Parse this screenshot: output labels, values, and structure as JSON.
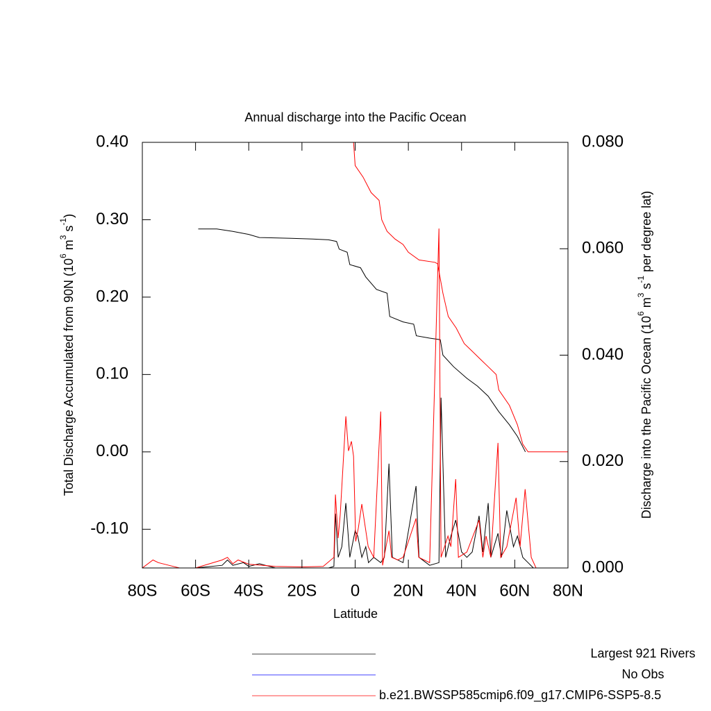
{
  "chart_data": {
    "type": "line",
    "title": "Annual discharge into the Pacific Ocean",
    "xlabel": "Latitude",
    "ylabel": [
      {
        "text": "Total Discharge Accumulated from 90N (10"
      },
      {
        "text": "6",
        "sup": true
      },
      {
        "text": " m"
      },
      {
        "text": "3",
        "sup": true
      },
      {
        "text": " s"
      },
      {
        "text": "-1",
        "sup": true
      },
      {
        "text": ")"
      }
    ],
    "y2label": [
      {
        "text": "Discharge into the Pacific Ocean (10"
      },
      {
        "text": "6",
        "sup": true
      },
      {
        "text": " m"
      },
      {
        "text": "3",
        "sup": true
      },
      {
        "text": " s"
      },
      {
        "text": "-1",
        "sup": true
      },
      {
        "text": " per degree lat)"
      }
    ],
    "xlim": [
      -80,
      80
    ],
    "xticks": [
      {
        "value": -80,
        "label": "80S"
      },
      {
        "value": -60,
        "label": "60S"
      },
      {
        "value": -40,
        "label": "40S"
      },
      {
        "value": -20,
        "label": "20S"
      },
      0,
      {
        "value": 20,
        "label": "20N"
      },
      {
        "value": 40,
        "label": "40N"
      },
      {
        "value": 60,
        "label": "60N"
      },
      {
        "value": 80,
        "label": "80N"
      }
    ],
    "ylim": [
      -0.15,
      0.4
    ],
    "yticks": [
      {
        "value": -0.1,
        "label": "-0.10"
      },
      {
        "value": 0,
        "label": "0.00"
      },
      {
        "value": 0.1,
        "label": "0.10"
      },
      {
        "value": 0.2,
        "label": "0.20"
      },
      {
        "value": 0.3,
        "label": "0.30"
      },
      {
        "value": 0.4,
        "label": "0.40"
      }
    ],
    "y2lim": [
      0,
      0.08
    ],
    "y2ticks": [
      {
        "value": 0,
        "label": "0.000"
      },
      {
        "value": 0.02,
        "label": "0.020"
      },
      {
        "value": 0.04,
        "label": "0.040"
      },
      {
        "value": 0.06,
        "label": "0.060"
      },
      {
        "value": 0.08,
        "label": "0.080"
      }
    ],
    "series": [
      {
        "name": "Largest 921 Rivers",
        "color": "#000000",
        "accumulated": {
          "x": [
            -59,
            -52,
            -46,
            -40,
            -36,
            -24,
            -16,
            -10,
            -7,
            -6,
            -3,
            -2,
            2,
            4,
            8,
            12,
            13,
            18,
            22,
            23,
            28,
            32,
            33,
            37,
            42,
            46,
            50,
            54,
            58,
            61,
            64
          ],
          "values": [
            0.288,
            0.288,
            0.285,
            0.281,
            0.277,
            0.276,
            0.275,
            0.274,
            0.272,
            0.262,
            0.258,
            0.242,
            0.238,
            0.226,
            0.21,
            0.205,
            0.175,
            0.168,
            0.165,
            0.15,
            0.147,
            0.145,
            0.125,
            0.11,
            0.095,
            0.085,
            0.072,
            0.052,
            0.035,
            0.02,
            0.0
          ]
        },
        "per_degree": {
          "x": [
            -80,
            -60,
            -50,
            -48,
            -46,
            -42,
            -40,
            -36,
            -30,
            -20,
            -10,
            -8,
            -7.4,
            -6.4,
            -5,
            -3.5,
            -2,
            0,
            1,
            2.5,
            4,
            5,
            7,
            9.6,
            11,
            12.7,
            14,
            18,
            22.9,
            24,
            28,
            31.5,
            32.3,
            34,
            36,
            37.8,
            40,
            42,
            44,
            46.6,
            48,
            50,
            51,
            53.7,
            55,
            57,
            59.5,
            61,
            63,
            65,
            67,
            80
          ],
          "values": [
            0,
            0,
            0.0005,
            0.0015,
            0.0005,
            0.001,
            0.0003,
            0.0008,
            0,
            0,
            0,
            0.0003,
            0.0102,
            0.002,
            0.004,
            0.0122,
            0.002,
            0.007,
            0.006,
            0.002,
            0.004,
            0.001,
            0.002,
            0.001,
            0.002,
            0.0196,
            0.002,
            0.001,
            0.0154,
            0.002,
            0.0005,
            0.001,
            0.032,
            0.002,
            0.006,
            0.009,
            0.003,
            0.002,
            0.003,
            0.0098,
            0.003,
            0.0122,
            0.002,
            0.0065,
            0.002,
            0.0108,
            0.004,
            0.006,
            0.002,
            0.001,
            0,
            0
          ]
        }
      },
      {
        "name": "No Obs",
        "color": "#0000ff"
      },
      {
        "name": "b.e21.BWSSP585cmip6.f09_g17.CMIP6-SSP5-8.5",
        "color": "#ff0000",
        "accumulated": {
          "x": [
            -1,
            0,
            3,
            6,
            9,
            10,
            12,
            15,
            18,
            20,
            24,
            30,
            31,
            33,
            35,
            38,
            41,
            44,
            47,
            50,
            53,
            54,
            58,
            61,
            63,
            65,
            80
          ],
          "values": [
            0.42,
            0.37,
            0.355,
            0.335,
            0.325,
            0.3,
            0.285,
            0.275,
            0.268,
            0.258,
            0.248,
            0.245,
            0.243,
            0.205,
            0.175,
            0.16,
            0.14,
            0.13,
            0.12,
            0.11,
            0.1,
            0.08,
            0.06,
            0.035,
            0.01,
            0,
            0
          ]
        },
        "per_degree": {
          "x": [
            -80,
            -76,
            -74,
            -70,
            -66,
            -60,
            -50,
            -48,
            -46,
            -44,
            -40,
            -30,
            -20,
            -12,
            -8,
            -7.4,
            -6.4,
            -5.6,
            -3.5,
            -2.5,
            -1.4,
            -0.6,
            0.2,
            1.2,
            2.5,
            4.9,
            7,
            9.6,
            10.3,
            12.7,
            13.7,
            16,
            18,
            22.9,
            23.9,
            28,
            31.5,
            32.3,
            34.9,
            36,
            37.8,
            38.8,
            42,
            46.6,
            48,
            49.2,
            51,
            53.7,
            54.7,
            57,
            60.5,
            62,
            63.9,
            66.2,
            68,
            80
          ],
          "values": [
            0,
            0.0015,
            0.001,
            0.0005,
            0,
            0,
            0.0015,
            0.002,
            0.0008,
            0.0015,
            0.0007,
            0.0003,
            0.0002,
            0.0003,
            0.002,
            0.0138,
            0.0056,
            0.01,
            0.0285,
            0.022,
            0.0238,
            0.021,
            0.005,
            0.0075,
            0.012,
            0.004,
            0.002,
            0.0294,
            0.0005,
            0.007,
            0.002,
            0.0015,
            0.002,
            0.0093,
            0.002,
            0.001,
            0.0638,
            0.002,
            0.006,
            0.004,
            0.0167,
            0.002,
            0.003,
            0.009,
            0.002,
            0.006,
            0.002,
            0.0235,
            0.002,
            0.004,
            0.0132,
            0.004,
            0.0148,
            0.002,
            0,
            0
          ]
        }
      }
    ]
  }
}
